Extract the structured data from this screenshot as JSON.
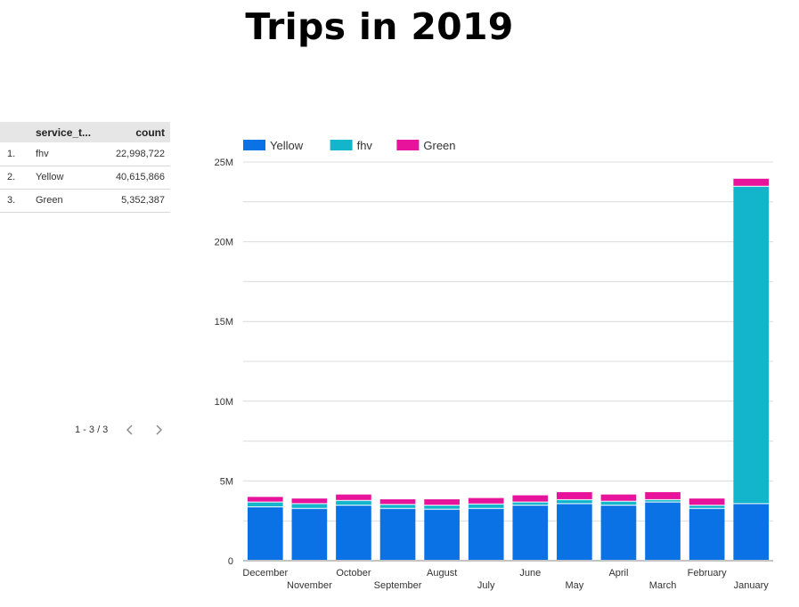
{
  "title": "Trips in 2019",
  "table": {
    "headers": {
      "service": "service_t...",
      "count": "count"
    },
    "rows": [
      {
        "index": "1.",
        "service": "fhv",
        "count": "22,998,722"
      },
      {
        "index": "2.",
        "service": "Yellow",
        "count": "40,615,866"
      },
      {
        "index": "3.",
        "service": "Green",
        "count": "5,352,387"
      }
    ],
    "pagination": "1 - 3 / 3"
  },
  "colors": {
    "Yellow": "#0b72e6",
    "fhv": "#12b5cb",
    "Green": "#e8139b",
    "grid": "#dcdcdc"
  },
  "chart_data": {
    "type": "bar",
    "stacked": true,
    "categories": [
      "December",
      "November",
      "October",
      "September",
      "August",
      "July",
      "June",
      "May",
      "April",
      "March",
      "February",
      "January"
    ],
    "series": [
      {
        "name": "Yellow",
        "values": [
          3.35,
          3.25,
          3.45,
          3.25,
          3.2,
          3.25,
          3.45,
          3.55,
          3.45,
          3.65,
          3.25,
          3.55
        ]
      },
      {
        "name": "fhv",
        "values": [
          0.3,
          0.3,
          0.3,
          0.25,
          0.25,
          0.28,
          0.2,
          0.25,
          0.25,
          0.15,
          0.2,
          19.9
        ]
      },
      {
        "name": "Green",
        "values": [
          0.35,
          0.35,
          0.4,
          0.35,
          0.4,
          0.4,
          0.45,
          0.5,
          0.45,
          0.5,
          0.45,
          0.5
        ]
      }
    ],
    "y_ticks": [
      "0",
      "5M",
      "10M",
      "15M",
      "20M",
      "25M"
    ],
    "ylim": [
      0,
      25
    ],
    "grid": true,
    "legend_position": "top-left"
  }
}
